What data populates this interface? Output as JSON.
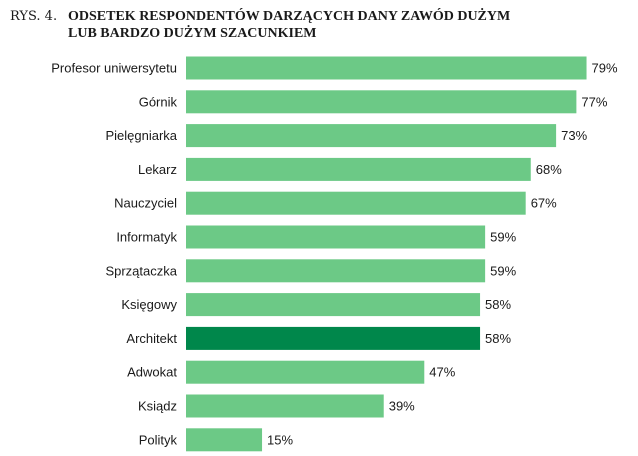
{
  "figure": {
    "number": "RYS. 4.",
    "title_lines": [
      "ODSETEK RESPONDENTÓW DARZĄCYCH DANY ZAWÓD DUŻYM",
      "LUB BARDZO DUŻYM SZACUNKIEM"
    ]
  },
  "chart_data": {
    "type": "bar",
    "orientation": "horizontal",
    "title": "ODSETEK RESPONDENTÓW DARZĄCYCH DANY ZAWÓD DUŻYM LUB BARDZO DUŻYM SZACUNKIEM",
    "categories": [
      "Profesor uniwersytetu",
      "Górnik",
      "Pielęgniarka",
      "Lekarz",
      "Nauczyciel",
      "Informatyk",
      "Sprzątaczka",
      "Księgowy",
      "Architekt",
      "Adwokat",
      "Ksiądz",
      "Polityk"
    ],
    "values": [
      79,
      77,
      73,
      68,
      67,
      59,
      59,
      58,
      58,
      47,
      39,
      15
    ],
    "value_suffix": "%",
    "highlight": "Architekt",
    "xlim": [
      0,
      100
    ],
    "grid": false,
    "legend": "none",
    "colors": {
      "bar": "#6cc986",
      "highlight": "#00874b",
      "text": "#1a1a1a"
    }
  }
}
